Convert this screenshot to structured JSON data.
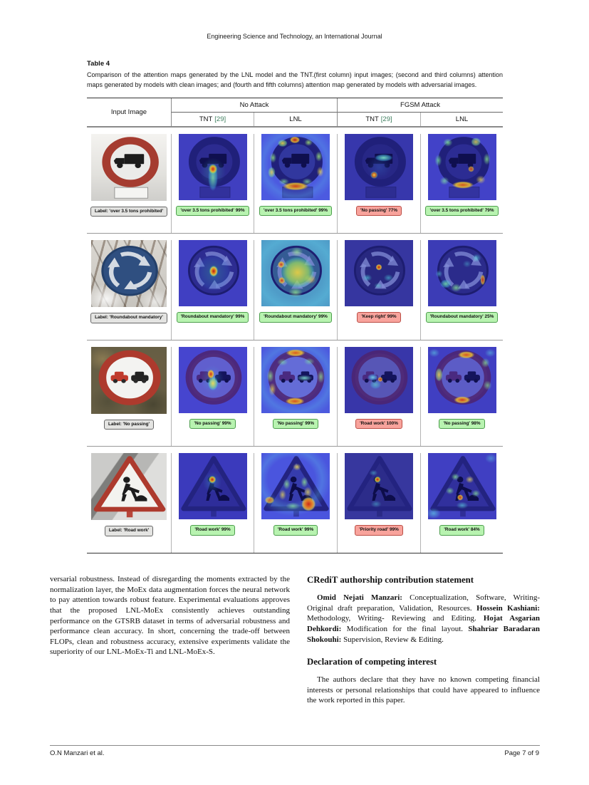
{
  "page": {
    "journal_title": "Engineering Science and Technology, an International Journal",
    "footer_author": "O.N Manzari et al.",
    "footer_page": "Page 7 of 9"
  },
  "table": {
    "label": "Table 4",
    "caption": "Comparison of the attention maps generated by the LNL model and the TNT.(first column) input images; (second and third columns) attention maps generated by models with clean images; and (fourth and fifth columns) attention map generated by models with adversarial images.",
    "columns": {
      "input": "Input Image",
      "group_no_attack": "No Attack",
      "group_fgsm": "FGSM Attack",
      "model_tnt": "TNT",
      "model_lnl": "LNL",
      "tnt_citation": "[29]"
    },
    "colors": {
      "correct_badge_bg": "#b8f3b0",
      "correct_badge_border": "#4d9e4d",
      "wrong_badge_bg": "#f8a39c",
      "wrong_badge_border": "#bb4f46",
      "input_label_bg": "#e4e4e2",
      "citation_green": "#3f7f5f"
    },
    "rows": [
      {
        "sign": "no-trucks",
        "input_label": "Label: 'over 3.5 tons prohibited'",
        "predictions": [
          {
            "text": "'over 3.5 tons prohibited' 99%",
            "status": "correct"
          },
          {
            "text": "'over 3.5 tons prohibited' 99%",
            "status": "correct"
          },
          {
            "text": "'No passing' 77%",
            "status": "wrong"
          },
          {
            "text": "'over 3.5 tons prohibited' 79%",
            "status": "correct"
          }
        ]
      },
      {
        "sign": "roundabout-mandatory",
        "input_label": "Label: 'Roundabout mandatory'",
        "predictions": [
          {
            "text": "'Roundabout mandatory' 99%",
            "status": "correct"
          },
          {
            "text": "'Roundabout mandatory' 99%",
            "status": "correct"
          },
          {
            "text": "'Keep right' 99%",
            "status": "wrong"
          },
          {
            "text": "'Roundabout mandatory' 25%",
            "status": "correct"
          }
        ]
      },
      {
        "sign": "no-passing",
        "input_label": "Label: 'No passing'",
        "predictions": [
          {
            "text": "'No passing' 99%",
            "status": "correct"
          },
          {
            "text": "'No passing' 99%",
            "status": "correct"
          },
          {
            "text": "'Road work' 100%",
            "status": "wrong"
          },
          {
            "text": "'No passing' 98%",
            "status": "correct"
          }
        ]
      },
      {
        "sign": "road-work",
        "input_label": "Label: 'Road work'",
        "predictions": [
          {
            "text": "'Road work' 99%",
            "status": "correct"
          },
          {
            "text": "'Road work' 99%",
            "status": "correct"
          },
          {
            "text": "'Priority road' 99%",
            "status": "wrong"
          },
          {
            "text": "'Road work' 84%",
            "status": "correct"
          }
        ]
      }
    ]
  },
  "body": {
    "left_paragraph": "versarial robustness. Instead of disregarding the moments extracted by the normalization layer, the MoEx data augmentation forces the neural network to pay attention towards robust feature. Experimental evaluations approves that the proposed LNL-MoEx consistently achieves outstanding performance on the GTSRB dataset in terms of adversarial robustness and performance clean accuracy. In short, concerning the trade-off between FLOPs, clean and robustness accuracy, extensive experiments validate the superiority of our LNL-MoEx-Ti and LNL-MoEx-S.",
    "credit_heading": "CRediT authorship contribution statement",
    "credit_segments": [
      {
        "name": "Omid Nejati Manzari:",
        "roles": " Conceptualization, Software, Writing- Original draft preparation, Validation, Resources. "
      },
      {
        "name": "Hossein Kashiani:",
        "roles": " Methodology, Writing- Reviewing and Editing. "
      },
      {
        "name": "Hojat Asgarian Dehkordi:",
        "roles": " Modification for the final layout. "
      },
      {
        "name": "Shahriar Baradaran Shokouhi:",
        "roles": " Supervision, Review & Editing."
      }
    ],
    "declaration_heading": "Declaration of competing interest",
    "declaration_paragraph": "The authors declare that they have no known competing financial interests or personal relationships that could have appeared to influence the work reported in this paper."
  }
}
